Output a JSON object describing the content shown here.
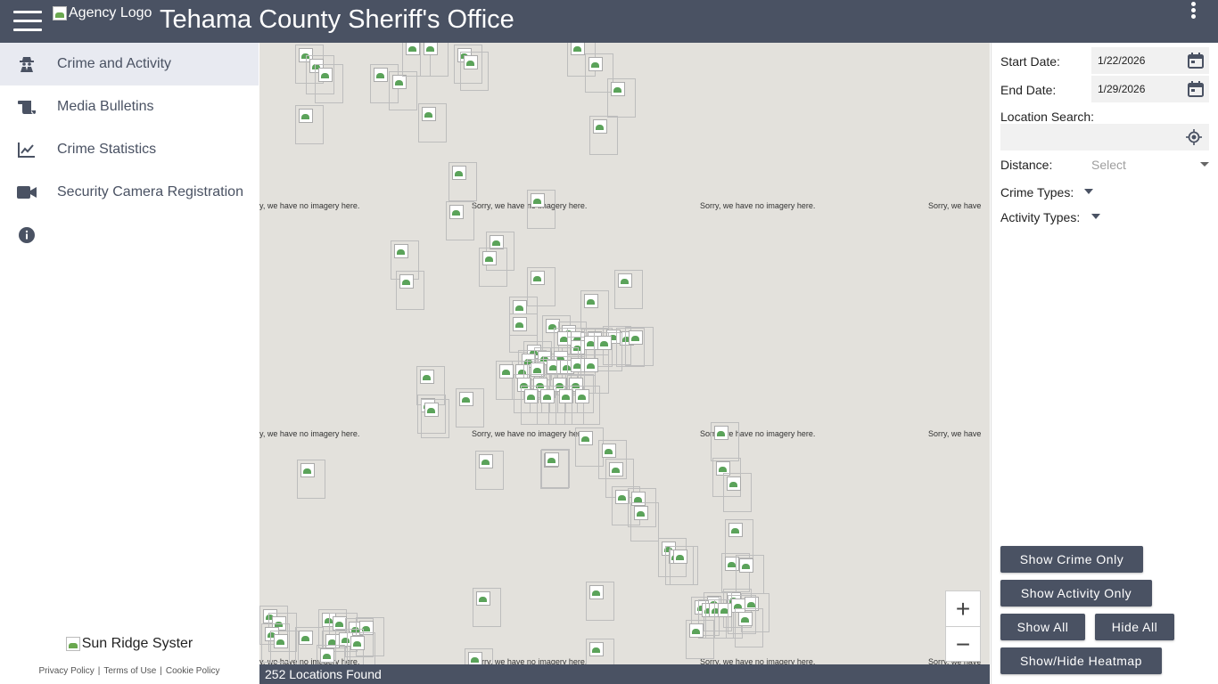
{
  "header": {
    "logo_alt": "Agency Logo",
    "title": "Tehama County Sheriff's Office"
  },
  "sidebar": {
    "items": [
      {
        "label": "Crime and Activity",
        "icon": "detective-icon",
        "active": true
      },
      {
        "label": "Media Bulletins",
        "icon": "scroll-icon",
        "active": false
      },
      {
        "label": "Crime Statistics",
        "icon": "line-chart-icon",
        "active": false
      },
      {
        "label": "Security Camera Registration",
        "icon": "video-camera-icon",
        "active": false
      },
      {
        "label": "",
        "icon": "info-icon",
        "active": false
      }
    ],
    "footer": {
      "logo_alt": "Sun Ridge Syster",
      "links": [
        "Privacy Policy",
        "Terms of Use",
        "Cookie Policy"
      ],
      "separator": "|"
    }
  },
  "map": {
    "no_imagery_text": "Sorry, we have no imagery here.",
    "no_imagery_partial_left": "ry, we have no imagery here.",
    "no_imagery_partial_right": "Sorry, we have",
    "zoom_in": "+",
    "zoom_out": "−",
    "status": "252 Locations Found"
  },
  "filters": {
    "start_date_label": "Start Date:",
    "start_date_value": "1/22/2026",
    "end_date_label": "End Date:",
    "end_date_value": "1/29/2026",
    "location_label": "Location Search:",
    "location_value": "",
    "distance_label": "Distance:",
    "distance_placeholder": "Select",
    "crime_types_label": "Crime Types:",
    "activity_types_label": "Activity Types:"
  },
  "buttons": {
    "show_crime_only": "Show Crime Only",
    "show_activity_only": "Show Activity Only",
    "show_all": "Show All",
    "hide_all": "Hide All",
    "toggle_heatmap": "Show/Hide Heatmap"
  },
  "colors": {
    "header": "#4a5263",
    "active_nav": "#e8eaf1",
    "map_background": "#e3e1dc",
    "button": "#4a5263"
  }
}
